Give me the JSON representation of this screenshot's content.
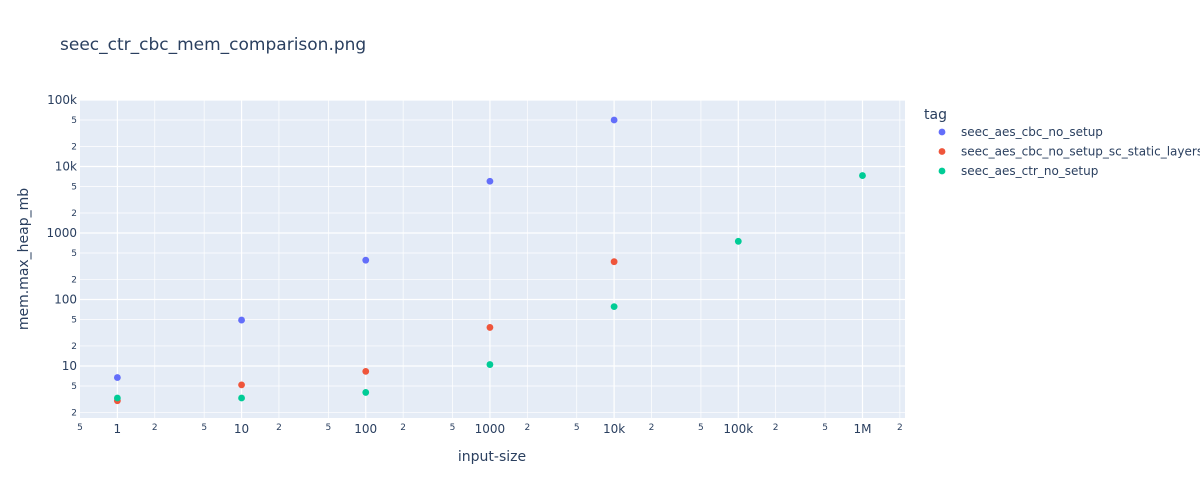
{
  "chart_data": {
    "type": "scatter",
    "title": "seec_ctr_cbc_mem_comparison.png",
    "xlabel": "input-size",
    "ylabel": "mem.max_heap_mb",
    "x_scale": "log",
    "y_scale": "log",
    "xlim": [
      0.5,
      2200000
    ],
    "ylim": [
      1.65,
      100000
    ],
    "x_major_ticks": [
      {
        "value": 1,
        "label": "1"
      },
      {
        "value": 10,
        "label": "10"
      },
      {
        "value": 100,
        "label": "100"
      },
      {
        "value": 1000,
        "label": "1000"
      },
      {
        "value": 10000,
        "label": "10k"
      },
      {
        "value": 100000,
        "label": "100k"
      },
      {
        "value": 1000000,
        "label": "1M"
      }
    ],
    "x_minor_ticks": [
      {
        "value": 0.5,
        "label": "5"
      },
      {
        "value": 2,
        "label": "2"
      },
      {
        "value": 5,
        "label": "5"
      },
      {
        "value": 20,
        "label": "2"
      },
      {
        "value": 50,
        "label": "5"
      },
      {
        "value": 200,
        "label": "2"
      },
      {
        "value": 500,
        "label": "5"
      },
      {
        "value": 2000,
        "label": "2"
      },
      {
        "value": 5000,
        "label": "5"
      },
      {
        "value": 20000,
        "label": "2"
      },
      {
        "value": 50000,
        "label": "5"
      },
      {
        "value": 200000,
        "label": "2"
      },
      {
        "value": 500000,
        "label": "5"
      },
      {
        "value": 2000000,
        "label": "2"
      }
    ],
    "y_major_ticks": [
      {
        "value": 10,
        "label": "10"
      },
      {
        "value": 100,
        "label": "100"
      },
      {
        "value": 1000,
        "label": "1000"
      },
      {
        "value": 10000,
        "label": "10k"
      },
      {
        "value": 100000,
        "label": "100k"
      }
    ],
    "y_minor_ticks": [
      {
        "value": 2,
        "label": "2"
      },
      {
        "value": 5,
        "label": "5"
      },
      {
        "value": 20,
        "label": "2"
      },
      {
        "value": 50,
        "label": "5"
      },
      {
        "value": 200,
        "label": "2"
      },
      {
        "value": 500,
        "label": "5"
      },
      {
        "value": 2000,
        "label": "2"
      },
      {
        "value": 5000,
        "label": "5"
      },
      {
        "value": 20000,
        "label": "2"
      },
      {
        "value": 50000,
        "label": "5"
      }
    ],
    "grid": true,
    "legend": {
      "title": "tag",
      "placement": "right"
    },
    "series": [
      {
        "name": "seec_aes_cbc_no_setup",
        "color": "#636efa",
        "x": [
          1,
          10,
          100,
          1000,
          10000
        ],
        "y": [
          6.7,
          49,
          390,
          6000,
          50000
        ]
      },
      {
        "name": "seec_aes_cbc_no_setup_sc_static_layers",
        "color": "#ef553b",
        "x": [
          1,
          10,
          100,
          1000,
          10000
        ],
        "y": [
          3.0,
          5.2,
          8.3,
          38,
          370
        ]
      },
      {
        "name": "seec_aes_ctr_no_setup",
        "color": "#00cc96",
        "x": [
          1,
          10,
          100,
          1000,
          10000,
          100000,
          1000000
        ],
        "y": [
          3.3,
          3.3,
          4.0,
          10.5,
          78,
          750,
          7300
        ]
      }
    ]
  }
}
